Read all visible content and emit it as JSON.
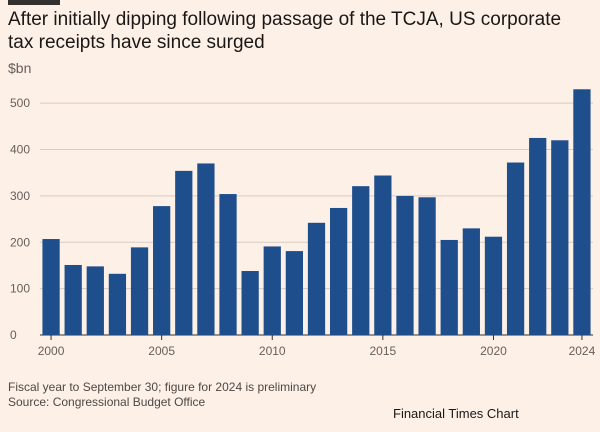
{
  "header": {
    "title": "After initially dipping following passage of the TCJA, US corporate tax receipts have since surged",
    "unit": "$bn"
  },
  "footer": {
    "note": "Fiscal year to September 30; figure for 2024 is preliminary",
    "source": "Source: Congressional Budget Office",
    "credit": "Financial Times Chart"
  },
  "colors": {
    "bar": "#1f4e8c",
    "grid": "#d9ccc2",
    "axis": "#33302e",
    "tick_text": "#66605c",
    "background": "#fdf0e6"
  },
  "chart_data": {
    "type": "bar",
    "title": "After initially dipping following passage of the TCJA, US corporate tax receipts have since surged",
    "ylabel": "$bn",
    "xlabel": "",
    "categories": [
      2000,
      2001,
      2002,
      2003,
      2004,
      2005,
      2006,
      2007,
      2008,
      2009,
      2010,
      2011,
      2012,
      2013,
      2014,
      2015,
      2016,
      2017,
      2018,
      2019,
      2020,
      2021,
      2022,
      2023,
      2024
    ],
    "values": [
      207,
      151,
      148,
      132,
      189,
      278,
      354,
      370,
      304,
      138,
      191,
      181,
      242,
      274,
      321,
      344,
      300,
      297,
      205,
      230,
      212,
      372,
      425,
      420,
      530
    ],
    "ylim": [
      0,
      550
    ],
    "yticks": [
      0,
      100,
      200,
      300,
      400,
      500
    ],
    "xticks": [
      2000,
      2005,
      2010,
      2015,
      2020,
      2024
    ],
    "grid": true
  }
}
